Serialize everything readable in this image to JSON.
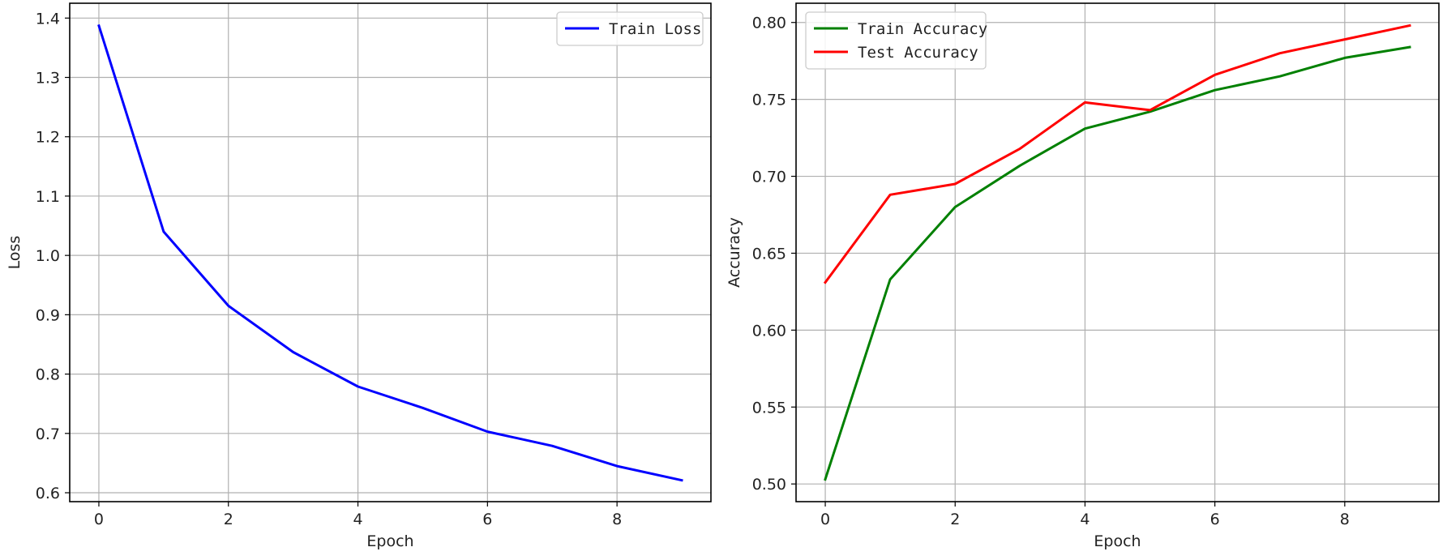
{
  "chart_data": [
    {
      "type": "line",
      "xlabel": "Epoch",
      "ylabel": "Loss",
      "x": [
        0,
        1,
        2,
        3,
        4,
        5,
        6,
        7,
        8,
        9
      ],
      "xlim": [
        -0.45,
        9.45
      ],
      "ylim": [
        0.585,
        1.425
      ],
      "xticks": [
        0,
        2,
        4,
        6,
        8
      ],
      "xtick_labels": [
        "0",
        "2",
        "4",
        "6",
        "8"
      ],
      "yticks": [
        0.6,
        0.7,
        0.8,
        0.9,
        1.0,
        1.1,
        1.2,
        1.3,
        1.4
      ],
      "ytick_labels": [
        "0.6",
        "0.7",
        "0.8",
        "0.9",
        "1.0",
        "1.1",
        "1.2",
        "1.3",
        "1.4"
      ],
      "grid": true,
      "legend_position": "top-right",
      "series": [
        {
          "name": "Train Loss",
          "color": "#0000ff",
          "values": [
            1.387,
            1.04,
            0.915,
            0.837,
            0.779,
            0.743,
            0.703,
            0.679,
            0.645,
            0.621
          ]
        }
      ]
    },
    {
      "type": "line",
      "xlabel": "Epoch",
      "ylabel": "Accuracy",
      "x": [
        0,
        1,
        2,
        3,
        4,
        5,
        6,
        7,
        8,
        9
      ],
      "xlim": [
        -0.45,
        9.45
      ],
      "ylim": [
        0.4885,
        0.8125
      ],
      "xticks": [
        0,
        2,
        4,
        6,
        8
      ],
      "xtick_labels": [
        "0",
        "2",
        "4",
        "6",
        "8"
      ],
      "yticks": [
        0.5,
        0.55,
        0.6,
        0.65,
        0.7,
        0.75,
        0.8
      ],
      "ytick_labels": [
        "0.50",
        "0.55",
        "0.60",
        "0.65",
        "0.70",
        "0.75",
        "0.80"
      ],
      "grid": true,
      "legend_position": "top-left",
      "series": [
        {
          "name": "Train Accuracy",
          "color": "#008000",
          "values": [
            0.503,
            0.633,
            0.68,
            0.707,
            0.731,
            0.742,
            0.756,
            0.765,
            0.777,
            0.784
          ]
        },
        {
          "name": "Test Accuracy",
          "color": "#ff0000",
          "values": [
            0.631,
            0.688,
            0.695,
            0.718,
            0.748,
            0.743,
            0.766,
            0.78,
            0.789,
            0.798
          ]
        }
      ]
    }
  ]
}
